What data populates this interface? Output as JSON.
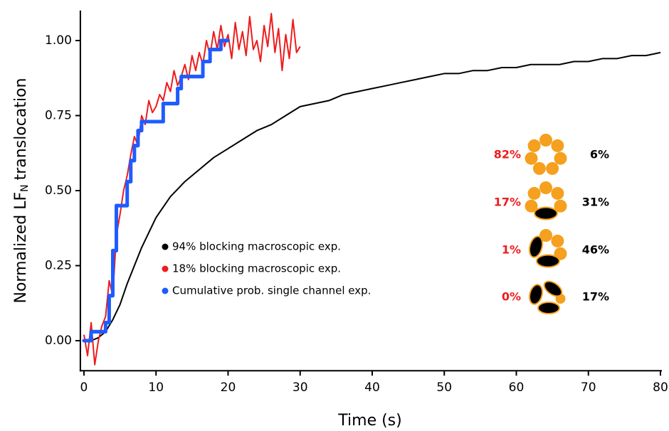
{
  "chart_data": {
    "type": "line",
    "xlabel": "Time (s)",
    "ylabel": {
      "text": "Normalized LF",
      "subscript": "N",
      "suffix": "translocation"
    },
    "xlim": [
      -0.5,
      80
    ],
    "ylim": [
      -0.1,
      1.1
    ],
    "xticks": [
      0,
      10,
      20,
      30,
      40,
      50,
      60,
      70,
      80
    ],
    "yticks": [
      {
        "value": 0,
        "label": "0.00"
      },
      {
        "value": 0.25,
        "label": "0.25"
      },
      {
        "value": 0.5,
        "label": "0.50"
      },
      {
        "value": 0.75,
        "label": "0.75"
      },
      {
        "value": 1,
        "label": "1.00"
      }
    ],
    "grid": false,
    "legend": "center",
    "series": [
      {
        "name": "94% blocking macroscopic exp.",
        "color": "#000000",
        "step": false,
        "x": [
          0,
          1,
          2,
          3,
          4,
          5,
          6,
          7,
          8,
          9,
          10,
          12,
          14,
          16,
          18,
          20,
          22,
          24,
          26,
          28,
          30,
          32,
          34,
          36,
          38,
          40,
          42,
          44,
          46,
          48,
          50,
          52,
          54,
          56,
          58,
          60,
          62,
          64,
          66,
          68,
          70,
          72,
          74,
          76,
          78,
          80
        ],
        "values": [
          0,
          0,
          0.01,
          0.03,
          0.07,
          0.12,
          0.19,
          0.25,
          0.31,
          0.36,
          0.41,
          0.48,
          0.53,
          0.57,
          0.61,
          0.64,
          0.67,
          0.7,
          0.72,
          0.75,
          0.78,
          0.79,
          0.8,
          0.82,
          0.83,
          0.84,
          0.85,
          0.86,
          0.87,
          0.88,
          0.89,
          0.89,
          0.9,
          0.9,
          0.91,
          0.91,
          0.92,
          0.92,
          0.92,
          0.93,
          0.93,
          0.94,
          0.94,
          0.95,
          0.95,
          0.96
        ]
      },
      {
        "name": "18% blocking macroscopic exp.",
        "color": "#ee1c1c",
        "step": false,
        "x": [
          0,
          0.5,
          1,
          1.5,
          2,
          2.5,
          3,
          3.5,
          4,
          4.5,
          5,
          5.5,
          6,
          6.5,
          7,
          7.5,
          8,
          8.5,
          9,
          9.5,
          10,
          10.5,
          11,
          11.5,
          12,
          12.5,
          13,
          13.5,
          14,
          14.5,
          15,
          15.5,
          16,
          16.5,
          17,
          17.5,
          18,
          18.5,
          19,
          19.5,
          20,
          20.5,
          21,
          21.5,
          22,
          22.5,
          23,
          23.5,
          24,
          24.5,
          25,
          25.5,
          26,
          26.5,
          27,
          27.5,
          28,
          28.5,
          29,
          29.5,
          30
        ],
        "values": [
          0.02,
          -0.05,
          0.06,
          -0.08,
          0,
          0.05,
          0.08,
          0.2,
          0.15,
          0.35,
          0.42,
          0.5,
          0.55,
          0.62,
          0.68,
          0.65,
          0.75,
          0.72,
          0.8,
          0.76,
          0.78,
          0.82,
          0.8,
          0.86,
          0.83,
          0.9,
          0.85,
          0.88,
          0.92,
          0.87,
          0.95,
          0.9,
          0.96,
          0.92,
          1,
          0.95,
          1.03,
          0.97,
          1.05,
          0.98,
          1.02,
          0.94,
          1.06,
          0.97,
          1.03,
          0.95,
          1.08,
          0.97,
          1,
          0.93,
          1.05,
          0.98,
          1.09,
          0.96,
          1.04,
          0.9,
          1.02,
          0.94,
          1.07,
          0.96,
          0.98
        ]
      },
      {
        "name": "Cumulative prob. single channel exp.",
        "color": "#1f5cff",
        "step": true,
        "x": [
          0,
          1,
          3,
          3.5,
          4,
          4.5,
          6,
          6.5,
          7,
          7.5,
          8,
          10,
          11,
          13,
          13.5,
          16,
          16.5,
          17.5,
          19,
          20
        ],
        "values": [
          0,
          0.03,
          0.06,
          0.15,
          0.3,
          0.45,
          0.53,
          0.6,
          0.65,
          0.7,
          0.73,
          0.73,
          0.79,
          0.84,
          0.88,
          0.88,
          0.93,
          0.97,
          1,
          1
        ]
      }
    ],
    "pore_table": [
      {
        "left": "82%",
        "right": "6%"
      },
      {
        "left": "17%",
        "right": "31%"
      },
      {
        "left": "1%",
        "right": "46%"
      },
      {
        "left": "0%",
        "right": "17%"
      }
    ],
    "pore_left_color": "#ee1c1c"
  }
}
